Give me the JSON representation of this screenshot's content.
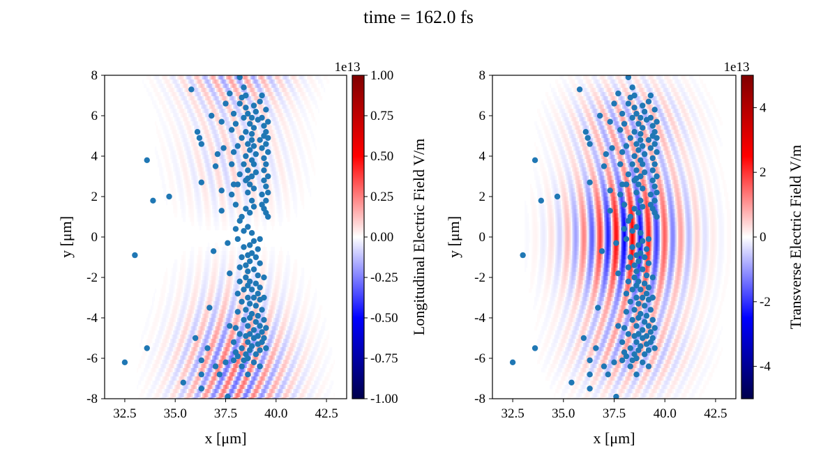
{
  "figure": {
    "suptitle": "time = 162.0 fs"
  },
  "colors": {
    "particle": "#1f77b4",
    "cmap_low": "#00004c",
    "cmap_mid": "#ffffff",
    "cmap_high": "#800000"
  },
  "chart_data": [
    {
      "type": "heatmap",
      "panel": "left",
      "colormap": "seismic",
      "xlabel": "x [μm]",
      "ylabel": "y [μm]",
      "xlim": [
        31.5,
        43.5
      ],
      "ylim": [
        -8,
        8
      ],
      "xticks": [
        32.5,
        35.0,
        37.5,
        40.0,
        42.5
      ],
      "xtick_labels": [
        "32.5",
        "35.0",
        "37.5",
        "40.0",
        "42.5"
      ],
      "yticks": [
        -8,
        -6,
        -4,
        -2,
        0,
        2,
        4,
        6,
        8
      ],
      "ytick_labels": [
        "-8",
        "-6",
        "-4",
        "-2",
        "0",
        "2",
        "4",
        "6",
        "8"
      ],
      "colorbar": {
        "label": "Longitudinal Electric Field V/m",
        "offset_text": "1e13",
        "range": [
          -1.0,
          1.0
        ],
        "ticks": [
          -1.0,
          -0.75,
          -0.5,
          -0.25,
          0.0,
          0.25,
          0.5,
          0.75,
          1.0
        ],
        "tick_labels": [
          "-1.00",
          "-0.75",
          "-0.50",
          "-0.25",
          "0.00",
          "0.25",
          "0.50",
          "0.75",
          "1.00"
        ]
      },
      "field": {
        "component": "longitudinal",
        "peak_fraction": 0.12,
        "wavelength_um": 0.8,
        "center_x": 38.0,
        "waist_y": 6.0
      },
      "scatter_ref": "particles"
    },
    {
      "type": "heatmap",
      "panel": "right",
      "colormap": "seismic",
      "xlabel": "x [μm]",
      "ylabel": "y [μm]",
      "xlim": [
        31.5,
        43.5
      ],
      "ylim": [
        -8,
        8
      ],
      "xticks": [
        32.5,
        35.0,
        37.5,
        40.0,
        42.5
      ],
      "xtick_labels": [
        "32.5",
        "35.0",
        "37.5",
        "40.0",
        "42.5"
      ],
      "yticks": [
        -8,
        -6,
        -4,
        -2,
        0,
        2,
        4,
        6,
        8
      ],
      "ytick_labels": [
        "-8",
        "-6",
        "-4",
        "-2",
        "0",
        "2",
        "4",
        "6",
        "8"
      ],
      "colorbar": {
        "label": "Transverse Electric Field V/m",
        "offset_text": "1e13",
        "range": [
          -5,
          5
        ],
        "ticks": [
          -4,
          -2,
          0,
          2,
          4
        ],
        "tick_labels": [
          "-4",
          "-2",
          "0",
          "2",
          "4"
        ]
      },
      "field": {
        "component": "transverse",
        "peak_fraction": 0.25,
        "wavelength_um": 0.8,
        "center_x": 38.2,
        "waist_y": 3.2
      },
      "scatter_ref": "particles"
    }
  ],
  "particles": [
    [
      32.5,
      -6.2
    ],
    [
      33.0,
      -0.9
    ],
    [
      33.6,
      3.8
    ],
    [
      33.6,
      -5.5
    ],
    [
      33.9,
      1.8
    ],
    [
      34.7,
      2.0
    ],
    [
      35.4,
      -7.2
    ],
    [
      35.8,
      7.3
    ],
    [
      36.0,
      -5.0
    ],
    [
      36.1,
      5.2
    ],
    [
      36.2,
      4.9
    ],
    [
      36.3,
      4.6
    ],
    [
      36.3,
      2.7
    ],
    [
      36.3,
      -6.1
    ],
    [
      36.3,
      -6.8
    ],
    [
      36.3,
      -7.5
    ],
    [
      36.6,
      -5.5
    ],
    [
      36.7,
      -3.5
    ],
    [
      36.8,
      6.0
    ],
    [
      36.9,
      -0.7
    ],
    [
      37.0,
      -6.4
    ],
    [
      37.0,
      3.5
    ],
    [
      37.1,
      4.1
    ],
    [
      37.2,
      -6.8
    ],
    [
      37.3,
      2.3
    ],
    [
      37.3,
      1.3
    ],
    [
      37.3,
      5.7
    ],
    [
      37.4,
      4.4
    ],
    [
      37.5,
      6.6
    ],
    [
      37.6,
      -7.9
    ],
    [
      37.6,
      -0.3
    ],
    [
      37.7,
      7.1
    ],
    [
      37.7,
      -4.4
    ],
    [
      37.7,
      -1.8
    ],
    [
      37.8,
      3.6
    ],
    [
      37.8,
      5.3
    ],
    [
      37.8,
      2.1
    ],
    [
      37.9,
      6.1
    ],
    [
      37.9,
      4.2
    ],
    [
      37.9,
      -6.1
    ],
    [
      37.9,
      -5.2
    ],
    [
      38.0,
      -4.5
    ],
    [
      38.0,
      5.6
    ],
    [
      38.0,
      1.6
    ],
    [
      38.1,
      2.6
    ],
    [
      38.1,
      -0.1
    ],
    [
      38.1,
      -2.8
    ],
    [
      38.1,
      -3.7
    ],
    [
      38.1,
      -5.9
    ],
    [
      38.2,
      6.6
    ],
    [
      38.2,
      0.8
    ],
    [
      38.2,
      3.1
    ],
    [
      38.2,
      -2.2
    ],
    [
      38.2,
      -4.8
    ],
    [
      38.2,
      7.9
    ],
    [
      38.3,
      4.9
    ],
    [
      38.3,
      1.0
    ],
    [
      38.3,
      -1.0
    ],
    [
      38.3,
      -3.2
    ],
    [
      38.3,
      -5.5
    ],
    [
      38.3,
      -6.4
    ],
    [
      38.4,
      7.4
    ],
    [
      38.4,
      5.9
    ],
    [
      38.4,
      3.6
    ],
    [
      38.4,
      0.3
    ],
    [
      38.4,
      -0.5
    ],
    [
      38.4,
      -2.6
    ],
    [
      38.4,
      -4.1
    ],
    [
      38.5,
      6.4
    ],
    [
      38.5,
      5.2
    ],
    [
      38.5,
      4.0
    ],
    [
      38.5,
      2.8
    ],
    [
      38.5,
      1.4
    ],
    [
      38.5,
      -1.4
    ],
    [
      38.5,
      -2.0
    ],
    [
      38.5,
      -3.6
    ],
    [
      38.5,
      -4.9
    ],
    [
      38.5,
      -5.8
    ],
    [
      38.5,
      7.0
    ],
    [
      38.6,
      6.1
    ],
    [
      38.6,
      4.6
    ],
    [
      38.6,
      3.3
    ],
    [
      38.6,
      2.2
    ],
    [
      38.6,
      0.5
    ],
    [
      38.6,
      -0.9
    ],
    [
      38.6,
      -1.7
    ],
    [
      38.6,
      -2.4
    ],
    [
      38.6,
      -3.0
    ],
    [
      38.6,
      -4.4
    ],
    [
      38.6,
      -5.2
    ],
    [
      38.6,
      -6.0
    ],
    [
      38.6,
      -6.8
    ],
    [
      38.7,
      5.6
    ],
    [
      38.7,
      4.3
    ],
    [
      38.7,
      2.6
    ],
    [
      38.7,
      1.2
    ],
    [
      38.7,
      -0.4
    ],
    [
      38.7,
      -1.2
    ],
    [
      38.7,
      -2.2
    ],
    [
      38.7,
      -3.3
    ],
    [
      38.7,
      -4.0
    ],
    [
      38.7,
      -4.8
    ],
    [
      38.7,
      -5.6
    ],
    [
      38.8,
      5.9
    ],
    [
      38.8,
      5.1
    ],
    [
      38.8,
      4.8
    ],
    [
      38.8,
      3.8
    ],
    [
      38.8,
      3.0
    ],
    [
      38.8,
      1.8
    ],
    [
      38.8,
      0.2
    ],
    [
      38.8,
      -0.8
    ],
    [
      38.8,
      -2.6
    ],
    [
      38.8,
      -3.8
    ],
    [
      38.8,
      -5.4
    ],
    [
      38.9,
      5.4
    ],
    [
      38.9,
      4.5
    ],
    [
      38.9,
      3.6
    ],
    [
      38.9,
      2.4
    ],
    [
      38.9,
      1.5
    ],
    [
      38.9,
      -0.2
    ],
    [
      38.9,
      -1.6
    ],
    [
      38.9,
      -3.0
    ],
    [
      38.9,
      -4.6
    ],
    [
      38.9,
      -5.0
    ],
    [
      38.9,
      -6.2
    ],
    [
      39.0,
      6.2
    ],
    [
      39.0,
      4.1
    ],
    [
      39.0,
      3.2
    ],
    [
      39.0,
      -1.0
    ],
    [
      39.0,
      -2.3
    ],
    [
      39.0,
      -3.4
    ],
    [
      39.0,
      -4.2
    ],
    [
      39.0,
      -5.8
    ],
    [
      39.1,
      5.8
    ],
    [
      39.1,
      -0.6
    ],
    [
      39.1,
      -1.9
    ],
    [
      39.1,
      -2.8
    ],
    [
      39.1,
      -3.9
    ],
    [
      39.1,
      -4.9
    ],
    [
      39.1,
      -5.3
    ],
    [
      39.2,
      6.7
    ],
    [
      39.2,
      4.8
    ],
    [
      39.2,
      -0.1
    ],
    [
      39.2,
      -1.3
    ],
    [
      39.2,
      -2.5
    ],
    [
      39.2,
      -3.1
    ],
    [
      39.2,
      -4.4
    ],
    [
      39.2,
      -5.6
    ],
    [
      39.2,
      -6.4
    ],
    [
      39.3,
      5.9
    ],
    [
      39.3,
      4.4
    ],
    [
      39.3,
      2.1
    ],
    [
      39.3,
      1.6
    ],
    [
      39.3,
      -3.6
    ],
    [
      39.3,
      -4.7
    ],
    [
      39.3,
      -5.2
    ],
    [
      39.4,
      5.5
    ],
    [
      39.4,
      5.0
    ],
    [
      39.4,
      3.9
    ],
    [
      39.4,
      3.3
    ],
    [
      39.4,
      2.8
    ],
    [
      39.4,
      1.4
    ],
    [
      39.4,
      -2.0
    ],
    [
      39.4,
      -3.0
    ],
    [
      39.4,
      -4.1
    ],
    [
      39.4,
      -5.0
    ],
    [
      39.5,
      6.3
    ],
    [
      39.5,
      5.2
    ],
    [
      39.5,
      4.6
    ],
    [
      39.5,
      3.6
    ],
    [
      39.5,
      2.5
    ],
    [
      39.5,
      1.8
    ],
    [
      39.5,
      1.2
    ],
    [
      39.5,
      -4.5
    ],
    [
      39.5,
      -5.5
    ],
    [
      39.6,
      5.7
    ],
    [
      39.6,
      4.2
    ],
    [
      39.6,
      3.0
    ],
    [
      39.6,
      2.2
    ],
    [
      39.6,
      1.0
    ],
    [
      39.6,
      4.9
    ],
    [
      38.0,
      -5.7
    ],
    [
      38.4,
      -6.1
    ],
    [
      37.5,
      -6.2
    ],
    [
      38.2,
      -1.5
    ],
    [
      38.0,
      0.4
    ],
    [
      37.9,
      2.6
    ],
    [
      38.3,
      6.9
    ],
    [
      38.1,
      4.5
    ],
    [
      38.9,
      6.5
    ],
    [
      39.3,
      7.0
    ],
    [
      38.6,
      2.9
    ]
  ]
}
